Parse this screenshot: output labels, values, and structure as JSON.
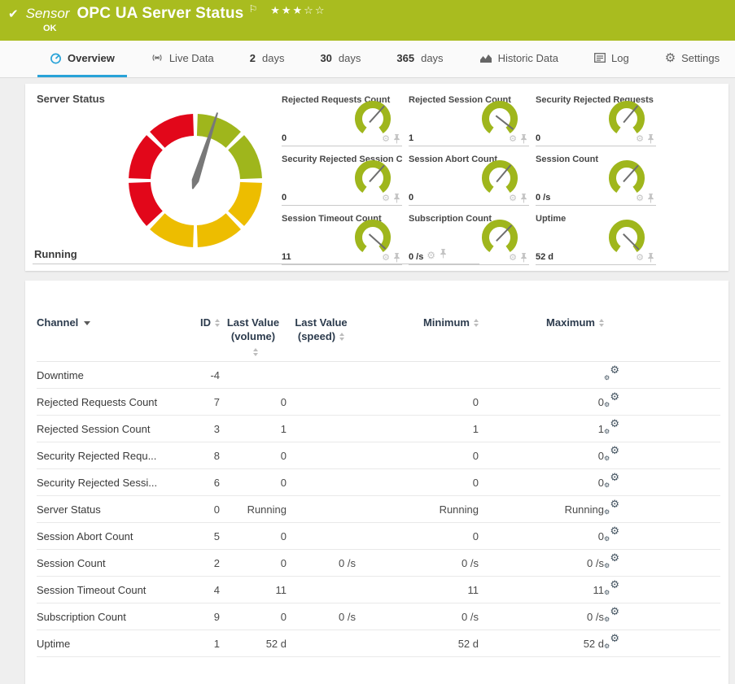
{
  "header": {
    "sensor_label": "Sensor",
    "title": "OPC UA Server Status",
    "status": "OK",
    "rating": {
      "filled": 3,
      "empty": 2
    }
  },
  "tabs": [
    {
      "id": "overview",
      "icon": "gauge-icon",
      "label": "Overview",
      "active": true
    },
    {
      "id": "live-data",
      "icon": "live-icon",
      "label": "Live Data"
    },
    {
      "id": "2-days",
      "num": "2",
      "label": "days"
    },
    {
      "id": "30-days",
      "num": "30",
      "label": "days"
    },
    {
      "id": "365-days",
      "num": "365",
      "label": "days"
    },
    {
      "id": "historic-data",
      "icon": "chart-icon",
      "label": "Historic Data"
    },
    {
      "id": "log",
      "icon": "log-icon",
      "label": "Log"
    },
    {
      "id": "settings",
      "icon": "gear-icon",
      "label": "Settings"
    }
  ],
  "colors": {
    "status_bar": "#a9bc1f",
    "gauge_green": "#9fb61c",
    "gauge_yellow": "#edbd00",
    "gauge_red": "#e2071a",
    "accent_blue": "#29a3d8",
    "needle": "#787878",
    "icon_gray": "#c3c3c3",
    "tab_icon_gray": "#666666"
  },
  "overview": {
    "primary_channel": {
      "name": "Server Status",
      "value": "Running"
    },
    "main_gauge": {
      "type": "gauge",
      "needle_deg": 18,
      "segment_deg": 45,
      "segment_colors": [
        "green",
        "green",
        "yellow",
        "yellow",
        "yellow",
        "red",
        "red",
        "red"
      ]
    },
    "mini_gauges": [
      {
        "title": "Rejected Requests Count",
        "value": "0",
        "needle_deg": 42
      },
      {
        "title": "Rejected Session Count",
        "value": "1",
        "needle_deg": 128
      },
      {
        "title": "Security Rejected Requests C...",
        "value": "0",
        "needle_deg": 40
      },
      {
        "title": "Security Rejected Session Co...",
        "value": "0",
        "needle_deg": 42
      },
      {
        "title": "Session Abort Count",
        "value": "0",
        "needle_deg": 40
      },
      {
        "title": "Session Count",
        "value": "0 /s",
        "needle_deg": 42
      },
      {
        "title": "Session Timeout Count",
        "value": "11",
        "needle_deg": 132
      },
      {
        "title": "Subscription Count",
        "value": "0 /s",
        "needle_deg": 44
      },
      {
        "title": "Uptime",
        "value": "52 d",
        "needle_deg": 135
      }
    ]
  },
  "table": {
    "headers": {
      "channel": "Channel",
      "id": "ID",
      "last_volume_l1": "Last Value",
      "last_volume_l2": "(volume)",
      "last_speed_l1": "Last Value",
      "last_speed_l2": "(speed)",
      "minimum": "Minimum",
      "maximum": "Maximum"
    },
    "rows": [
      {
        "channel": "Downtime",
        "id": "-4",
        "last_volume": "",
        "last_speed": "",
        "minimum": "",
        "maximum": ""
      },
      {
        "channel": "Rejected Requests Count",
        "id": "7",
        "last_volume": "0",
        "last_speed": "",
        "minimum": "0",
        "maximum": "0"
      },
      {
        "channel": "Rejected Session Count",
        "id": "3",
        "last_volume": "1",
        "last_speed": "",
        "minimum": "1",
        "maximum": "1"
      },
      {
        "channel": "Security Rejected Requ...",
        "id": "8",
        "last_volume": "0",
        "last_speed": "",
        "minimum": "0",
        "maximum": "0"
      },
      {
        "channel": "Security Rejected Sessi...",
        "id": "6",
        "last_volume": "0",
        "last_speed": "",
        "minimum": "0",
        "maximum": "0"
      },
      {
        "channel": "Server Status",
        "id": "0",
        "last_volume": "Running",
        "last_speed": "",
        "minimum": "Running",
        "maximum": "Running"
      },
      {
        "channel": "Session Abort Count",
        "id": "5",
        "last_volume": "0",
        "last_speed": "",
        "minimum": "0",
        "maximum": "0"
      },
      {
        "channel": "Session Count",
        "id": "2",
        "last_volume": "0",
        "last_speed": "0 /s",
        "minimum": "0 /s",
        "maximum": "0 /s"
      },
      {
        "channel": "Session Timeout Count",
        "id": "4",
        "last_volume": "11",
        "last_speed": "",
        "minimum": "11",
        "maximum": "11"
      },
      {
        "channel": "Subscription Count",
        "id": "9",
        "last_volume": "0",
        "last_speed": "0 /s",
        "minimum": "0 /s",
        "maximum": "0 /s"
      },
      {
        "channel": "Uptime",
        "id": "1",
        "last_volume": "52 d",
        "last_speed": "",
        "minimum": "52 d",
        "maximum": "52 d"
      }
    ]
  }
}
